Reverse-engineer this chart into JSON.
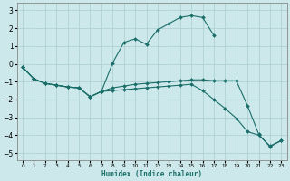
{
  "xlabel": "Humidex (Indice chaleur)",
  "background_color": "#cce8ea",
  "grid_color": "#aacdd0",
  "line_color": "#1a6e6a",
  "xlim": [
    -0.5,
    23.5
  ],
  "ylim": [
    -5.4,
    3.4
  ],
  "xticks": [
    0,
    1,
    2,
    3,
    4,
    5,
    6,
    7,
    8,
    9,
    10,
    11,
    12,
    13,
    14,
    15,
    16,
    17,
    18,
    19,
    20,
    21,
    22,
    23
  ],
  "yticks": [
    -5,
    -4,
    -3,
    -2,
    -1,
    0,
    1,
    2,
    3
  ],
  "series": [
    {
      "x": [
        0,
        1,
        2,
        3,
        4,
        5,
        6,
        7,
        8,
        9,
        10,
        11,
        12,
        13,
        14,
        15,
        16,
        17
      ],
      "y": [
        -0.2,
        -0.85,
        -1.1,
        -1.2,
        -1.3,
        -1.35,
        -1.85,
        -1.55,
        0.05,
        1.2,
        1.4,
        1.1,
        1.9,
        2.25,
        2.6,
        2.7,
        2.6,
        1.6
      ]
    },
    {
      "x": [
        0,
        1,
        2,
        3,
        4,
        5,
        6,
        7,
        8,
        9,
        10,
        11,
        12,
        13,
        14,
        15,
        16,
        17,
        18,
        19,
        20,
        21,
        22,
        23
      ],
      "y": [
        -0.2,
        -0.85,
        -1.1,
        -1.2,
        -1.3,
        -1.35,
        -1.85,
        -1.55,
        -1.35,
        -1.25,
        -1.15,
        -1.1,
        -1.05,
        -1.0,
        -0.95,
        -0.9,
        -0.9,
        -0.95,
        -0.95,
        -0.95,
        -2.35,
        -3.95,
        -4.65,
        -4.3
      ]
    },
    {
      "x": [
        0,
        1,
        2,
        3,
        4,
        5,
        6,
        7,
        8,
        9,
        10,
        11,
        12,
        13,
        14,
        15,
        16,
        17,
        18,
        19,
        20,
        21,
        22,
        23
      ],
      "y": [
        -0.2,
        -0.85,
        -1.1,
        -1.2,
        -1.3,
        -1.35,
        -1.85,
        -1.55,
        -1.5,
        -1.45,
        -1.4,
        -1.35,
        -1.3,
        -1.25,
        -1.2,
        -1.15,
        -1.5,
        -2.0,
        -2.5,
        -3.05,
        -3.8,
        -4.0,
        -4.6,
        -4.3
      ]
    }
  ]
}
